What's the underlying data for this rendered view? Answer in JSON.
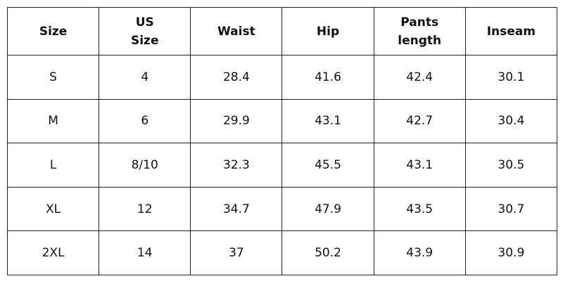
{
  "table": {
    "header": [
      "Size",
      "US Size",
      "Waist",
      "Hip",
      "Pants length",
      "Inseam"
    ],
    "rows": [
      [
        "S",
        "4",
        "28.4",
        "41.6",
        "42.4",
        "30.1"
      ],
      [
        "M",
        "6",
        "29.9",
        "43.1",
        "42.7",
        "30.4"
      ],
      [
        "L",
        "8/10",
        "32.3",
        "45.5",
        "43.1",
        "30.5"
      ],
      [
        "XL",
        "12",
        "34.7",
        "47.9",
        "43.5",
        "30.7"
      ],
      [
        "2XL",
        "14",
        "37",
        "50.2",
        "43.9",
        "30.9"
      ]
    ]
  }
}
